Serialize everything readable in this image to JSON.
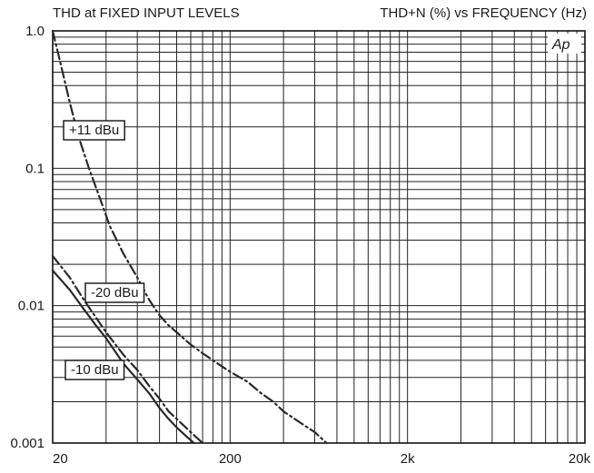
{
  "chart_data": {
    "type": "line",
    "title_left": "THD at FIXED INPUT LEVELS",
    "title_right": "THD+N (%) vs FREQUENCY (Hz)",
    "brand": "Ap",
    "x_scale": "log",
    "y_scale": "log",
    "xlim": [
      20,
      20000
    ],
    "ylim": [
      0.001,
      1.0
    ],
    "grid": true,
    "x_ticks": [
      {
        "value": 20,
        "label": "20"
      },
      {
        "value": 200,
        "label": "200"
      },
      {
        "value": 2000,
        "label": "2k"
      },
      {
        "value": 20000,
        "label": "20k"
      }
    ],
    "y_ticks": [
      {
        "value": 1.0,
        "label": "1.0"
      },
      {
        "value": 0.1,
        "label": "0.1"
      },
      {
        "value": 0.01,
        "label": "0.01"
      },
      {
        "value": 0.001,
        "label": "0.001"
      }
    ],
    "annotations": [
      {
        "text": "+11 dBu",
        "series": "+11 dBu"
      },
      {
        "text": "-20 dBu",
        "series": "-20 dBu"
      },
      {
        "text": "-10 dBu",
        "series": "-10 dBu"
      }
    ],
    "series": [
      {
        "name": "+11 dBu",
        "style": "dash-dot",
        "points": [
          [
            20,
            1.0
          ],
          [
            22,
            0.6
          ],
          [
            25,
            0.3
          ],
          [
            28,
            0.17
          ],
          [
            32,
            0.1
          ],
          [
            37,
            0.06
          ],
          [
            42,
            0.038
          ],
          [
            50,
            0.024
          ],
          [
            60,
            0.016
          ],
          [
            70,
            0.011
          ],
          [
            80,
            0.0085
          ],
          [
            90,
            0.0072
          ],
          [
            100,
            0.0064
          ],
          [
            120,
            0.0052
          ],
          [
            140,
            0.0045
          ],
          [
            170,
            0.0038
          ],
          [
            200,
            0.0033
          ],
          [
            250,
            0.0028
          ],
          [
            300,
            0.0023
          ],
          [
            350,
            0.002
          ],
          [
            400,
            0.0017
          ],
          [
            500,
            0.0014
          ],
          [
            600,
            0.0012
          ],
          [
            700,
            0.001
          ]
        ]
      },
      {
        "name": "-20 dBu",
        "style": "dash-dot",
        "points": [
          [
            20,
            0.023
          ],
          [
            25,
            0.016
          ],
          [
            30,
            0.011
          ],
          [
            36,
            0.0078
          ],
          [
            40,
            0.0064
          ],
          [
            50,
            0.0044
          ],
          [
            60,
            0.0034
          ],
          [
            70,
            0.0026
          ],
          [
            80,
            0.0021
          ],
          [
            90,
            0.0017
          ],
          [
            100,
            0.0015
          ],
          [
            120,
            0.0012
          ],
          [
            140,
            0.001
          ]
        ]
      },
      {
        "name": "-10 dBu",
        "style": "solid",
        "points": [
          [
            20,
            0.018
          ],
          [
            25,
            0.013
          ],
          [
            30,
            0.0094
          ],
          [
            35,
            0.0072
          ],
          [
            40,
            0.0058
          ],
          [
            50,
            0.0038
          ],
          [
            60,
            0.0029
          ],
          [
            70,
            0.0023
          ],
          [
            80,
            0.0018
          ],
          [
            90,
            0.0015
          ],
          [
            100,
            0.0013
          ],
          [
            115,
            0.0011
          ],
          [
            125,
            0.001
          ]
        ]
      }
    ]
  }
}
